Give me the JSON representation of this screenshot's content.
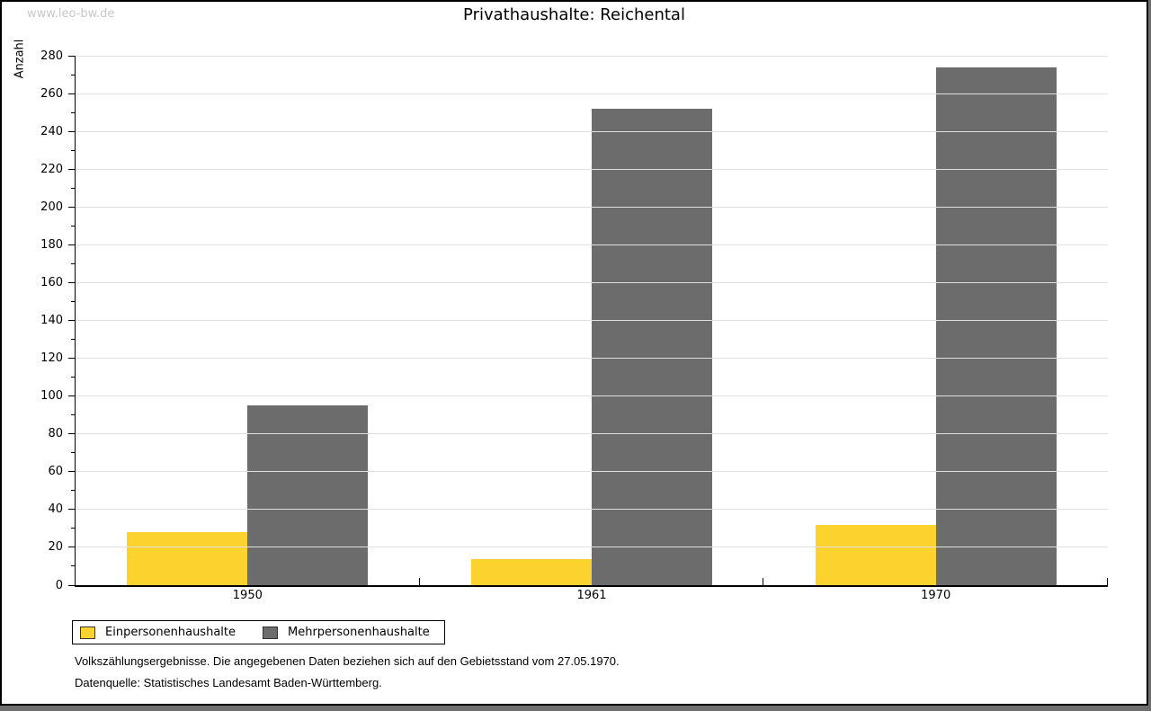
{
  "watermark": "www.leo-bw.de",
  "title": "Privathaushalte: Reichental",
  "chart_data": {
    "type": "bar",
    "title": "Privathaushalte: Reichental",
    "categories": [
      "1950",
      "1961",
      "1970"
    ],
    "series": [
      {
        "name": "Einpersonenhaushalte",
        "color": "#FCD32E",
        "values": [
          28,
          14,
          32
        ]
      },
      {
        "name": "Mehrpersonenhaushalte",
        "color": "#6C6C6C",
        "values": [
          95,
          252,
          274
        ]
      }
    ],
    "xlabel": "",
    "ylabel": "Anzahl",
    "ylim": [
      0,
      280
    ],
    "ytick_step": 20,
    "minor_tick_step": 10,
    "grid": true,
    "legend_position": "bottom-left"
  },
  "footnotes": {
    "line1": "Volkszählungsergebnisse. Die angegebenen Daten beziehen sich auf den Gebietsstand vom 27.05.1970.",
    "line2": "Datenquelle: Statistisches Landesamt Baden-Württemberg."
  },
  "colors": {
    "bar_yellow": "#FCD32E",
    "bar_gray": "#6C6C6C",
    "gridline": "#E0E0E0",
    "axis": "#000000",
    "watermark_text": "#C8C8C8",
    "background": "#FFFFFF",
    "frame_shadow": "#6E6E6E"
  }
}
